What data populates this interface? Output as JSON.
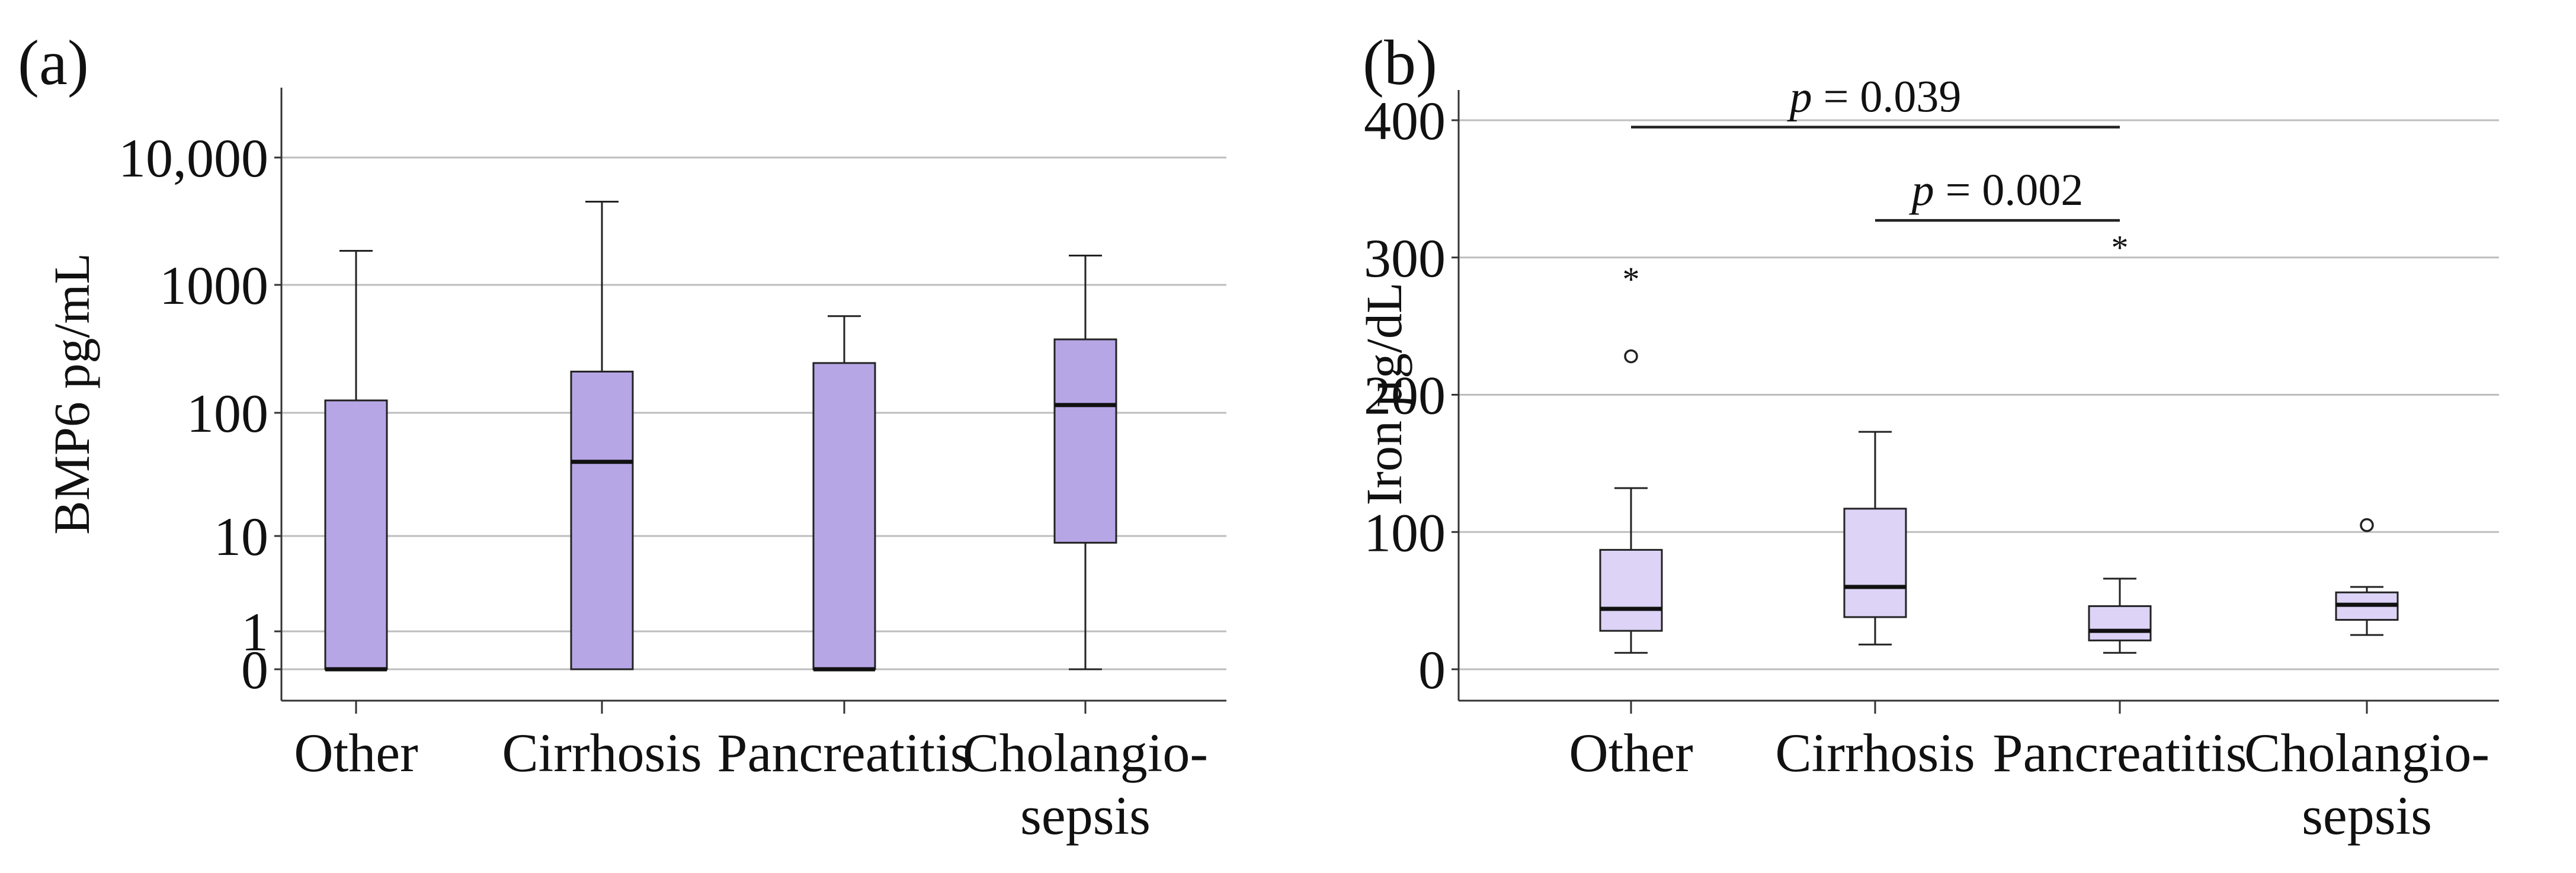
{
  "chart_data": [
    {
      "type": "box",
      "panel_label": "(a)",
      "ylabel": "BMP6 pg/mL",
      "yscale": "log",
      "yticks": [
        {
          "value": 0,
          "label": "0"
        },
        {
          "value": 1,
          "label": "1"
        },
        {
          "value": 10,
          "label": "10"
        },
        {
          "value": 100,
          "label": "100"
        },
        {
          "value": 1000,
          "label": "1000"
        },
        {
          "value": 10000,
          "label": "10,000"
        }
      ],
      "categories": [
        {
          "line1": "Other",
          "line2": ""
        },
        {
          "line1": "Cirrhosis",
          "line2": ""
        },
        {
          "line1": "Pancreatitis",
          "line2": ""
        },
        {
          "line1": "Cholangio-",
          "line2": "sepsis"
        }
      ],
      "box_color": "#b7a6e6",
      "series": [
        {
          "name": "Other",
          "min": 0,
          "q1": 0,
          "median": 0,
          "q3": 125,
          "max": 1850,
          "outliers": []
        },
        {
          "name": "Cirrhosis",
          "min": 0,
          "q1": 0,
          "median": 40,
          "q3": 210,
          "max": 4500,
          "outliers": []
        },
        {
          "name": "Pancreatitis",
          "min": 0,
          "q1": 0,
          "median": 0,
          "q3": 245,
          "max": 570,
          "outliers": []
        },
        {
          "name": "Cholangio-sepsis",
          "min": 0,
          "q1": 8.5,
          "median": 115,
          "q3": 375,
          "max": 1700,
          "outliers": []
        }
      ],
      "significance": []
    },
    {
      "type": "box",
      "panel_label": "(b)",
      "ylabel": "Iron µg/dL",
      "yscale": "linear",
      "ylim": [
        -20,
        420
      ],
      "yticks": [
        {
          "value": 0,
          "label": "0"
        },
        {
          "value": 100,
          "label": "100"
        },
        {
          "value": 200,
          "label": "200"
        },
        {
          "value": 300,
          "label": "300"
        },
        {
          "value": 400,
          "label": "400"
        }
      ],
      "categories": [
        {
          "line1": "Other",
          "line2": ""
        },
        {
          "line1": "Cirrhosis",
          "line2": ""
        },
        {
          "line1": "Pancreatitis",
          "line2": ""
        },
        {
          "line1": "Cholangio-",
          "line2": "sepsis"
        }
      ],
      "box_color": "#dcd3f6",
      "series": [
        {
          "name": "Other",
          "min": 12,
          "q1": 28,
          "median": 44,
          "q3": 87,
          "max": 132,
          "outliers": [
            {
              "value": 228,
              "marker": "circle"
            },
            {
              "value": 287,
              "marker": "star"
            }
          ]
        },
        {
          "name": "Cirrhosis",
          "min": 18,
          "q1": 38,
          "median": 60,
          "q3": 117,
          "max": 173,
          "outliers": []
        },
        {
          "name": "Pancreatitis",
          "min": 12,
          "q1": 21,
          "median": 28,
          "q3": 46,
          "max": 66,
          "outliers": [
            {
              "value": 310,
              "marker": "star"
            }
          ]
        },
        {
          "name": "Cholangio-sepsis",
          "min": 25,
          "q1": 36,
          "median": 47,
          "q3": 56,
          "max": 60,
          "outliers": [
            {
              "value": 105,
              "marker": "circle"
            }
          ]
        }
      ],
      "significance": [
        {
          "from": 0,
          "to": 2,
          "y": 395,
          "p_symbol": "p",
          "p_value": " = 0.039"
        },
        {
          "from": 1,
          "to": 2,
          "y": 327,
          "p_symbol": "p",
          "p_value": " = 0.002"
        }
      ]
    }
  ]
}
